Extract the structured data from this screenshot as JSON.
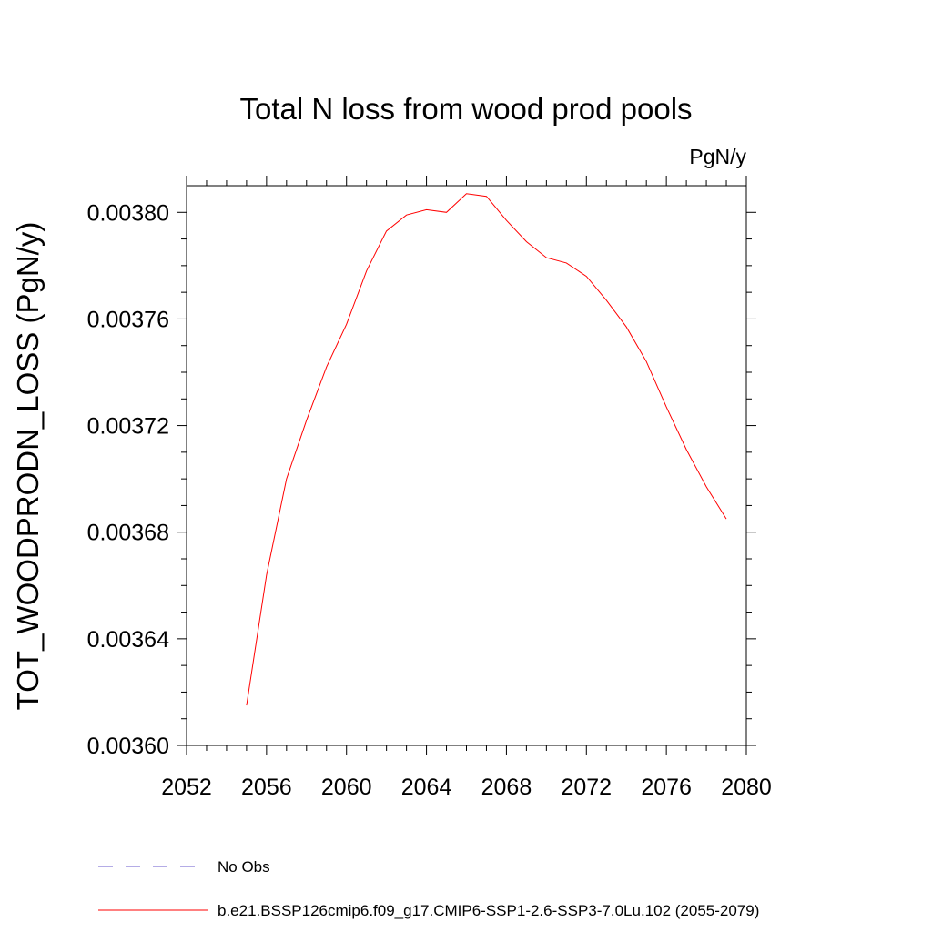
{
  "chart_data": {
    "type": "line",
    "title": "Total N loss from wood prod pools",
    "units_label": "PgN/y",
    "ylabel": "TOT_WOODPRODN_LOSS  (PgN/y)",
    "xlabel": "",
    "xlim": [
      2052,
      2080
    ],
    "ylim": [
      0.0036,
      0.00381
    ],
    "x_ticks": [
      2052,
      2056,
      2060,
      2064,
      2068,
      2072,
      2076,
      2080
    ],
    "x_tick_labels": [
      "2052",
      "2056",
      "2060",
      "2064",
      "2068",
      "2072",
      "2076",
      "2080"
    ],
    "y_ticks": [
      0.0036,
      0.00364,
      0.00368,
      0.00372,
      0.00376,
      0.0038
    ],
    "y_tick_labels": [
      "0.00360",
      "0.00364",
      "0.00368",
      "0.00372",
      "0.00376",
      "0.00380"
    ],
    "grid": false,
    "legend_position": "bottom",
    "series": [
      {
        "name": "b.e21.BSSP126cmip6.f09_g17.CMIP6-SSP1-2.6-SSP3-7.0Lu.102 (2055-2079)",
        "color": "#ff0000",
        "style": "solid",
        "x": [
          2055,
          2056,
          2057,
          2058,
          2059,
          2060,
          2061,
          2062,
          2063,
          2064,
          2065,
          2066,
          2067,
          2068,
          2069,
          2070,
          2071,
          2072,
          2073,
          2074,
          2075,
          2076,
          2077,
          2078,
          2079
        ],
        "y": [
          0.003615,
          0.003664,
          0.0037,
          0.003722,
          0.003742,
          0.003758,
          0.003778,
          0.003793,
          0.003799,
          0.003801,
          0.0038,
          0.003807,
          0.003806,
          0.003797,
          0.003789,
          0.003783,
          0.003781,
          0.003776,
          0.003767,
          0.003757,
          0.003744,
          0.003727,
          0.003711,
          0.003697,
          0.003685
        ]
      }
    ],
    "legend": [
      {
        "label": "No Obs",
        "color": "#6a5acd",
        "style": "dashed"
      },
      {
        "label": "b.e21.BSSP126cmip6.f09_g17.CMIP6-SSP1-2.6-SSP3-7.0Lu.102 (2055-2079)",
        "color": "#ff0000",
        "style": "solid"
      }
    ]
  }
}
